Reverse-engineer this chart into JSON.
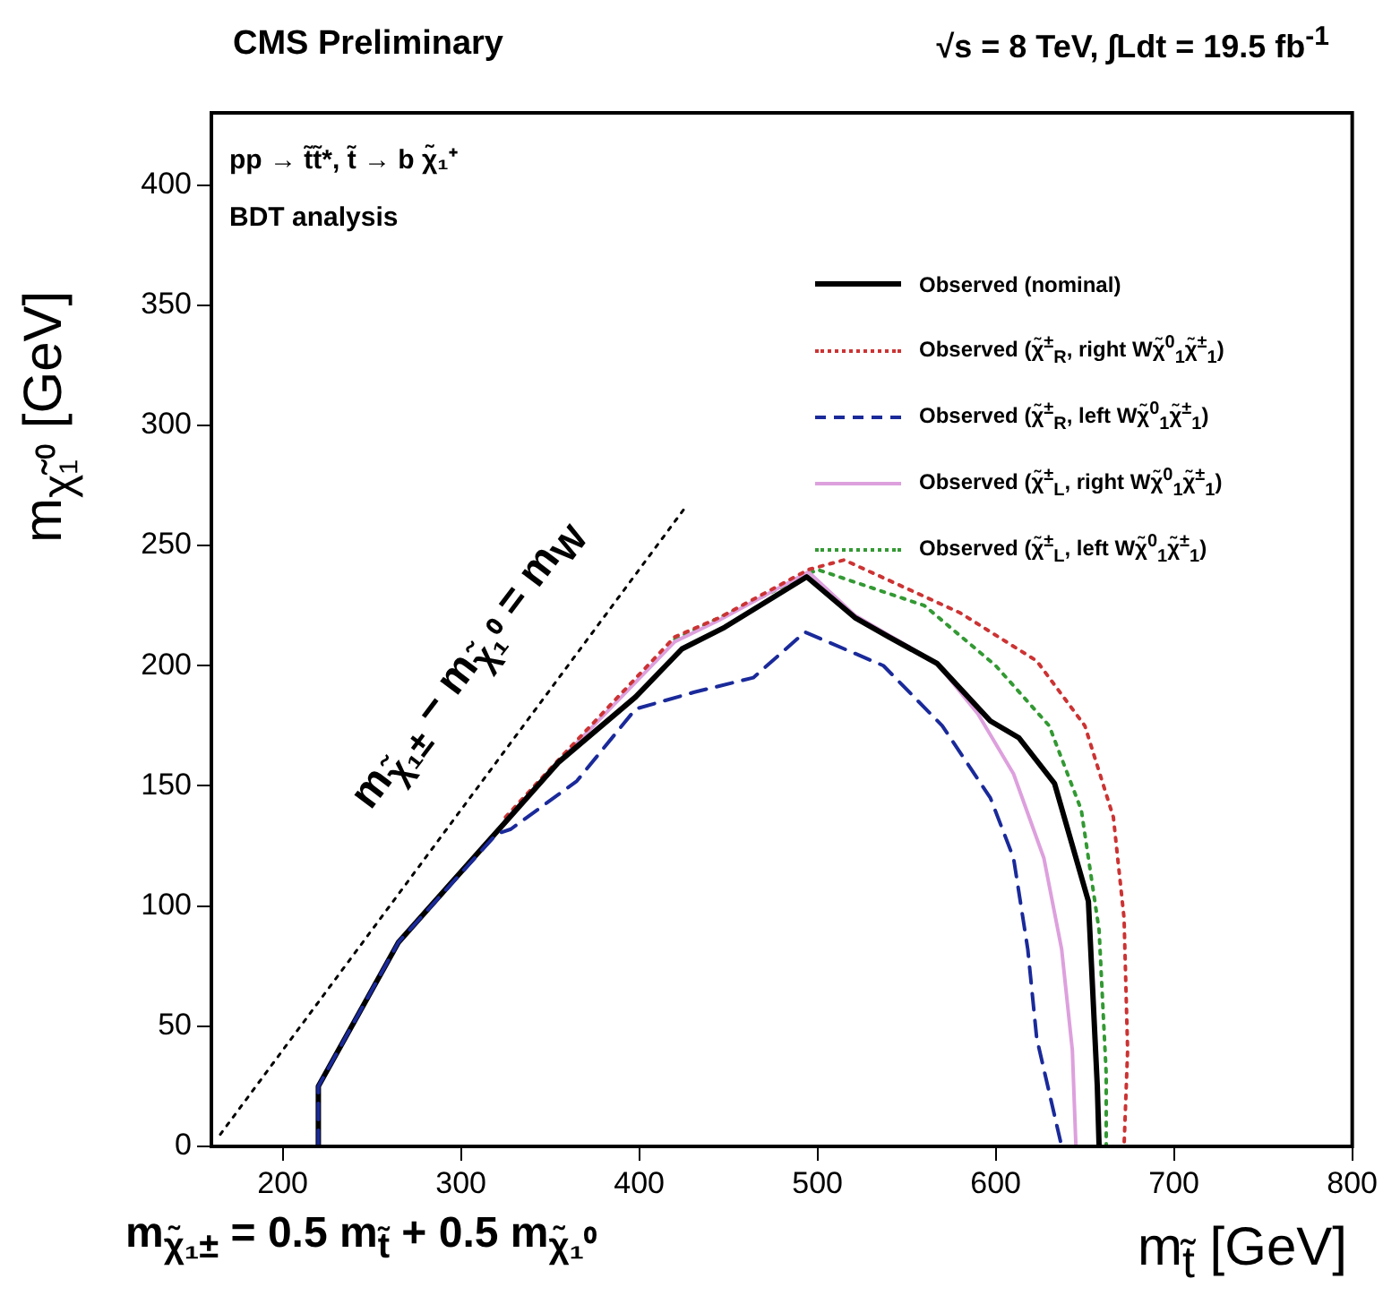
{
  "chart_data": {
    "type": "line",
    "title": "CMS Preliminary",
    "subtitle": "√s = 8 TeV, ∫Ldt = 19.5 fb$^{-1}$",
    "xlabel": "m$_{t̃}$ [GeV]",
    "ylabel": "m$_{χ̃₁⁰}$ [GeV]",
    "xlim": [
      160,
      800
    ],
    "xticks": [
      200,
      300,
      400,
      500,
      600,
      700,
      800
    ],
    "ylim": [
      0,
      430
    ],
    "yticks": [
      0,
      50,
      100,
      150,
      200,
      250,
      300,
      350,
      400
    ],
    "grid": false,
    "legend": "top right",
    "marker": "none",
    "annotations": [
      "pp → t̃t̃*, t̃ → b χ̃₁⁺",
      "BDT analysis",
      "m$_{χ̃₁±}$ = 0.5 m$_{t̃}$ + 0.5 m$_{χ̃₁⁰}$",
      "m$_{χ̃₁±}$ − m$_{χ̃₁⁰}$ = m$_{W}$"
    ],
    "series": [
      {
        "name": "Observed (nominal)",
        "color": "#000000",
        "line_style": "solid",
        "x": [
          220,
          220,
          265,
          325,
          355,
          398,
          424,
          448,
          494,
          521,
          540,
          567,
          597,
          613,
          633,
          652,
          657,
          658
        ],
        "values": [
          0,
          25,
          85,
          135,
          160,
          187,
          207,
          216,
          237,
          220,
          212,
          201,
          177,
          170,
          151,
          102,
          25,
          0
        ]
      },
      {
        "name": "Observed (χ̃$^{±}$$_{R}$, right Wχ̃$^{0}$$_{1}$χ̃$^{±}$$_{1}$)",
        "color": "#cc3333",
        "line_style": "dotted",
        "x": [
          325,
          360,
          420,
          445,
          495,
          515,
          580,
          623,
          650,
          666,
          672,
          674,
          672
        ],
        "values": [
          137,
          165,
          212,
          220,
          240,
          244,
          222,
          202,
          175,
          137,
          95,
          40,
          0
        ]
      },
      {
        "name": "Observed (χ̃$^{±}$$_{R}$, left Wχ̃$^{0}$$_{1}$χ̃$^{±}$$_{1}$)",
        "color": "#1a2a9a",
        "line_style": "dashed",
        "x": [
          220,
          220,
          265,
          320,
          328,
          365,
          398,
          431,
          464,
          493,
          537,
          570,
          597,
          610,
          618,
          623,
          637
        ],
        "values": [
          0,
          25,
          85,
          130,
          132,
          152,
          182,
          189,
          195,
          214,
          200,
          175,
          145,
          120,
          82,
          45,
          0
        ]
      },
      {
        "name": "Observed (χ̃$^{±}$$_{L}$, right Wχ̃$^{0}$$_{1}$χ̃$^{±}$$_{1}$)",
        "color": "#dda0dd",
        "line_style": "solid",
        "x": [
          325,
          360,
          420,
          445,
          495,
          521,
          567,
          590,
          610,
          627,
          637,
          643,
          645
        ],
        "values": [
          136,
          164,
          210,
          219,
          239,
          221,
          201,
          180,
          155,
          120,
          82,
          40,
          0
        ]
      },
      {
        "name": "Observed (χ̃$^{±}$$_{L}$, left Wχ̃$^{0}$$_{1}$χ̃$^{±}$$_{1}$)",
        "color": "#339933",
        "line_style": "dotted",
        "x": [
          420,
          445,
          500,
          560,
          600,
          630,
          648,
          658,
          662,
          662
        ],
        "values": [
          211,
          220,
          240,
          225,
          200,
          175,
          140,
          90,
          30,
          0
        ]
      },
      {
        "color": "#000000",
        "line_style": "dotted",
        "x": [
          165,
          425
        ],
        "values": [
          5,
          265
        ]
      }
    ]
  }
}
